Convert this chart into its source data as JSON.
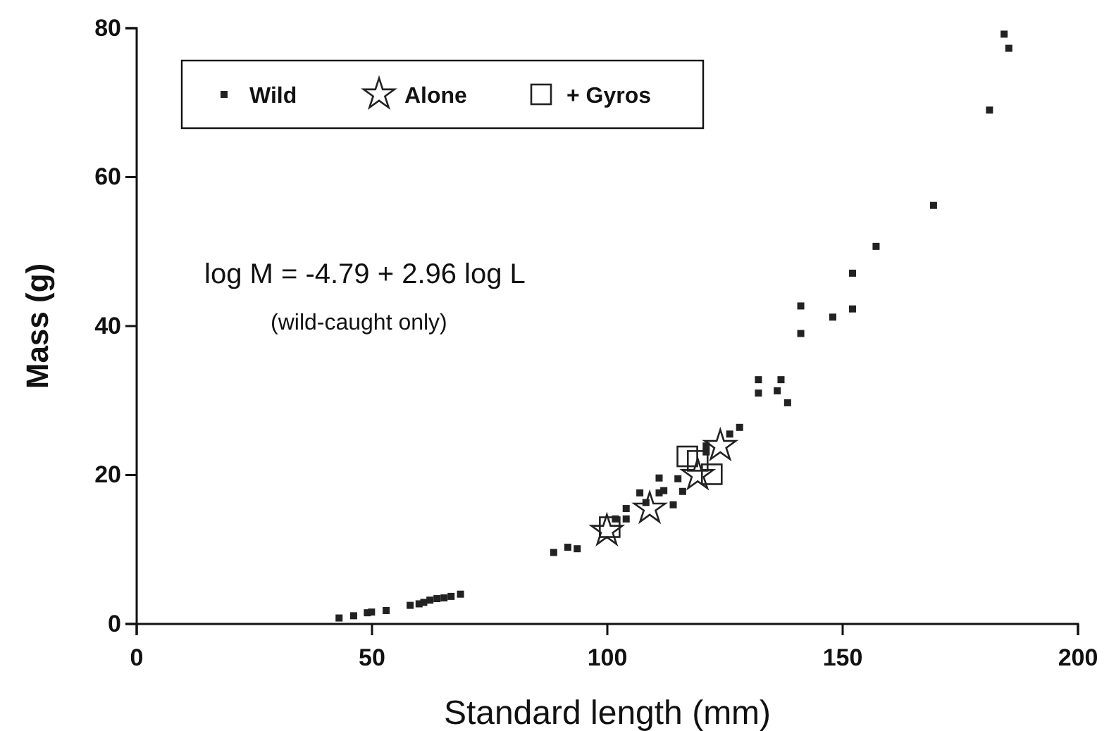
{
  "chart_data": {
    "type": "scatter",
    "xlabel": "Standard length (mm)",
    "ylabel": "Mass (g)",
    "xlim": [
      0,
      200
    ],
    "ylim": [
      0,
      80
    ],
    "xticks": [
      0,
      50,
      100,
      150,
      200
    ],
    "yticks": [
      0,
      20,
      40,
      60,
      80
    ],
    "grid": false,
    "legend": "top left",
    "annotations": [
      "log M =  -4.79 + 2.96 log L",
      "(wild-caught only)"
    ],
    "series": [
      {
        "name": "Wild",
        "color": "#222222",
        "marker": "square",
        "x": [
          43.0,
          46.1,
          49.0,
          49.9,
          53.0,
          58.1,
          60.0,
          61.0,
          62.3,
          63.8,
          65.3,
          66.8,
          68.8,
          88.6,
          91.6,
          93.6,
          101.7,
          104,
          104,
          106.9,
          111,
          112,
          111,
          115,
          116,
          114,
          108.2,
          121,
          121,
          126,
          128.1,
          132.1,
          136.9,
          132.1,
          136.1,
          138.3,
          141.1,
          141.1,
          147.9,
          152.1,
          152.1,
          157.1,
          169.3,
          181.2,
          184.3,
          185.3
        ],
        "values": [
          0.8,
          1.1,
          1.5,
          1.6,
          1.8,
          2.5,
          2.7,
          2.9,
          3.2,
          3.4,
          3.5,
          3.7,
          4.0,
          9.6,
          10.3,
          10.1,
          14.1,
          14.1,
          15.5,
          17.6,
          17.6,
          17.9,
          19.6,
          19.5,
          17.8,
          16.0,
          16.3,
          23.9,
          23.1,
          25.5,
          26.4,
          32.8,
          32.8,
          31.0,
          31.3,
          29.7,
          42.7,
          39.0,
          41.2,
          42.3,
          47.1,
          50.7,
          56.2,
          69.0,
          79.2,
          77.3
        ]
      },
      {
        "name": "Alone",
        "color": "#222222",
        "marker": "star",
        "x": [
          99.9,
          109,
          119.2,
          124
        ],
        "values": [
          12.5,
          15.5,
          20.0,
          23.9
        ]
      },
      {
        "name": "+ Gyros",
        "color": "#222222",
        "marker": "square",
        "x": [
          100.5,
          117,
          119.2,
          122.2
        ],
        "values": [
          13.0,
          22.5,
          21.9,
          20.1
        ]
      }
    ]
  }
}
